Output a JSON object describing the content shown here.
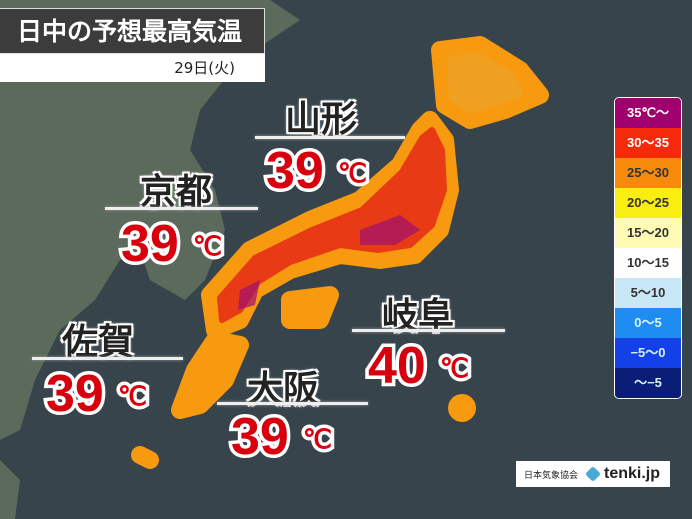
{
  "header": {
    "title": "日中の予想最高気温",
    "date": "29日(火)"
  },
  "cities": [
    {
      "name": "山形",
      "temp": "39",
      "unit": "℃"
    },
    {
      "name": "京都",
      "temp": "39",
      "unit": "℃"
    },
    {
      "name": "岐阜",
      "temp": "40",
      "unit": "℃"
    },
    {
      "name": "佐賀",
      "temp": "39",
      "unit": "℃"
    },
    {
      "name": "大阪",
      "temp": "39",
      "unit": "℃"
    }
  ],
  "legend": [
    {
      "label": "35℃～",
      "color": "#a0006e",
      "text": "#ffffff"
    },
    {
      "label": "30～35",
      "color": "#f52a0a",
      "text": "#ffffff"
    },
    {
      "label": "25～30",
      "color": "#f78a0a",
      "text": "#333333"
    },
    {
      "label": "20～25",
      "color": "#f8ee10",
      "text": "#333333"
    },
    {
      "label": "15～20",
      "color": "#fdfbb4",
      "text": "#333333"
    },
    {
      "label": "10～15",
      "color": "#ffffff",
      "text": "#333333"
    },
    {
      "label": "5～10",
      "color": "#c8e8f8",
      "text": "#333333"
    },
    {
      "label": "0～5",
      "color": "#1e8cf0",
      "text": "#d8f0ff"
    },
    {
      "label": "−5～0",
      "color": "#1440e8",
      "text": "#d8f0ff"
    },
    {
      "label": "～−5",
      "color": "#0a1e78",
      "text": "#d8f0ff"
    }
  ],
  "credit": {
    "org": "日本気象協会",
    "brand": "tenki.jp"
  }
}
